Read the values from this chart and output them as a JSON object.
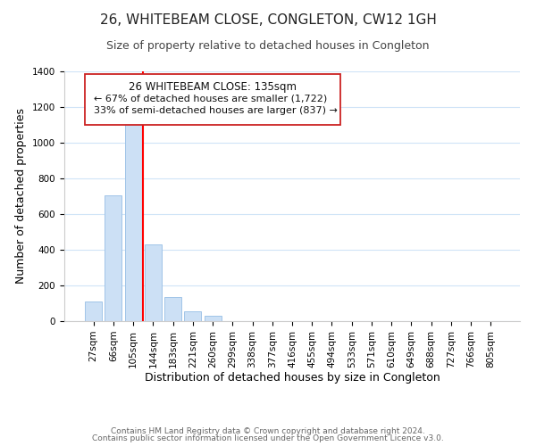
{
  "title": "26, WHITEBEAM CLOSE, CONGLETON, CW12 1GH",
  "subtitle": "Size of property relative to detached houses in Congleton",
  "xlabel": "Distribution of detached houses by size in Congleton",
  "ylabel": "Number of detached properties",
  "bar_labels": [
    "27sqm",
    "66sqm",
    "105sqm",
    "144sqm",
    "183sqm",
    "221sqm",
    "260sqm",
    "299sqm",
    "338sqm",
    "377sqm",
    "416sqm",
    "455sqm",
    "494sqm",
    "533sqm",
    "571sqm",
    "610sqm",
    "649sqm",
    "688sqm",
    "727sqm",
    "766sqm",
    "805sqm"
  ],
  "bar_values": [
    110,
    705,
    1120,
    430,
    135,
    57,
    30,
    0,
    0,
    0,
    0,
    0,
    0,
    0,
    0,
    0,
    0,
    0,
    0,
    0,
    0
  ],
  "bar_color": "#cce0f5",
  "bar_edge_color": "#a0c4e8",
  "vline_x": 2.5,
  "vline_color": "red",
  "ylim": [
    0,
    1400
  ],
  "yticks": [
    0,
    200,
    400,
    600,
    800,
    1000,
    1200,
    1400
  ],
  "annotation_title": "26 WHITEBEAM CLOSE: 135sqm",
  "annotation_line1": "← 67% of detached houses are smaller (1,722)",
  "annotation_line2": "33% of semi-detached houses are larger (837) →",
  "footer_line1": "Contains HM Land Registry data © Crown copyright and database right 2024.",
  "footer_line2": "Contains public sector information licensed under the Open Government Licence v3.0.",
  "background_color": "#ffffff",
  "grid_color": "#d0e4f7",
  "title_fontsize": 11,
  "subtitle_fontsize": 9,
  "axis_label_fontsize": 9,
  "tick_fontsize": 7.5,
  "footer_fontsize": 6.5
}
